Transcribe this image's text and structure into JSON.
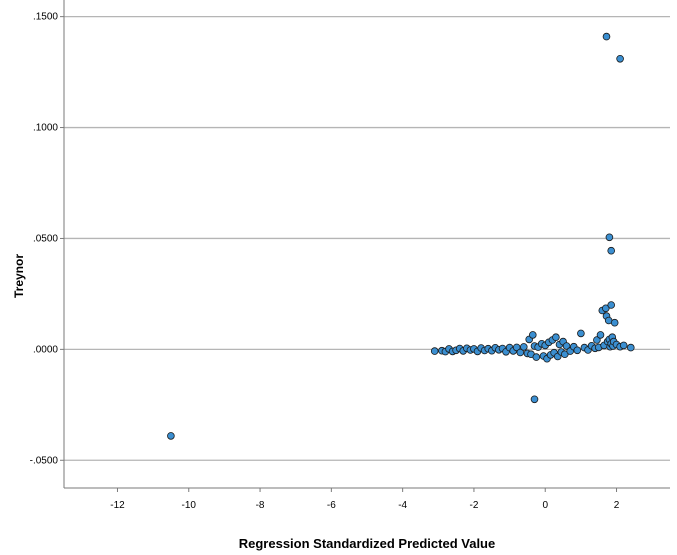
{
  "chart_data": {
    "type": "scatter",
    "title": "",
    "xlabel": "Regression Standardized Predicted Value",
    "ylabel": "Treynor",
    "xlim": [
      -13.5,
      3.5
    ],
    "ylim": [
      -0.0625,
      0.1575
    ],
    "x_ticks": [
      -12,
      -10,
      -8,
      -6,
      -4,
      -2,
      0,
      2
    ],
    "x_tick_labels": [
      "-12",
      "-10",
      "-8",
      "-6",
      "-4",
      "-2",
      "0",
      "2"
    ],
    "y_ticks": [
      -0.05,
      0,
      0.05,
      0.1,
      0.15
    ],
    "y_tick_labels": [
      "-.0500",
      ".0000",
      ".0500",
      ".1000",
      ".1500"
    ],
    "grid": "horizontal",
    "marker_fill": "#3b8fd1",
    "marker_edge": "#1a1a1a",
    "series": [
      {
        "points": [
          [
            -10.5,
            -0.039
          ],
          [
            -3.1,
            -0.0008
          ],
          [
            -2.9,
            -0.0006
          ],
          [
            -2.8,
            -0.001
          ],
          [
            -2.7,
            0.0002
          ],
          [
            -2.6,
            -0.0009
          ],
          [
            -2.5,
            -0.0004
          ],
          [
            -2.4,
            0.0004
          ],
          [
            -2.3,
            -0.0007
          ],
          [
            -2.2,
            0.0005
          ],
          [
            -2.1,
            -0.0003
          ],
          [
            -2.0,
            0.0002
          ],
          [
            -1.9,
            -0.0009
          ],
          [
            -1.8,
            0.0006
          ],
          [
            -1.7,
            -0.0005
          ],
          [
            -1.6,
            0.0003
          ],
          [
            -1.5,
            -0.0006
          ],
          [
            -1.4,
            0.0007
          ],
          [
            -1.3,
            -0.0002
          ],
          [
            -1.2,
            0.0004
          ],
          [
            -1.1,
            -0.0011
          ],
          [
            -1.0,
            0.0008
          ],
          [
            -0.9,
            -0.0007
          ],
          [
            -0.8,
            0.0009
          ],
          [
            -0.7,
            -0.0014
          ],
          [
            -0.6,
            0.0011
          ],
          [
            -0.5,
            -0.0018
          ],
          [
            -0.45,
            0.0045
          ],
          [
            -0.4,
            -0.0022
          ],
          [
            -0.35,
            0.0065
          ],
          [
            -0.3,
            0.0015
          ],
          [
            -0.25,
            -0.0035
          ],
          [
            -0.2,
            0.001
          ],
          [
            -0.3,
            -0.0225
          ],
          [
            -0.1,
            0.0025
          ],
          [
            -0.05,
            -0.003
          ],
          [
            0.0,
            0.0018
          ],
          [
            0.05,
            -0.0042
          ],
          [
            0.1,
            0.0032
          ],
          [
            0.15,
            -0.0025
          ],
          [
            0.2,
            0.0042
          ],
          [
            0.25,
            -0.0015
          ],
          [
            0.3,
            0.0055
          ],
          [
            0.35,
            -0.0032
          ],
          [
            0.4,
            0.0022
          ],
          [
            0.45,
            -0.0012
          ],
          [
            0.5,
            0.0035
          ],
          [
            0.55,
            -0.0022
          ],
          [
            0.6,
            0.0015
          ],
          [
            0.7,
            -0.0008
          ],
          [
            0.8,
            0.0012
          ],
          [
            0.9,
            -0.0004
          ],
          [
            1.0,
            0.0072
          ],
          [
            1.1,
            0.0008
          ],
          [
            1.2,
            -0.0003
          ],
          [
            1.3,
            0.0016
          ],
          [
            1.4,
            0.0005
          ],
          [
            1.45,
            0.0042
          ],
          [
            1.5,
            0.0009
          ],
          [
            1.55,
            0.0065
          ],
          [
            1.6,
            0.0175
          ],
          [
            1.65,
            0.0018
          ],
          [
            1.7,
            0.0185
          ],
          [
            1.72,
            0.015
          ],
          [
            1.75,
            0.0035
          ],
          [
            1.78,
            0.013
          ],
          [
            1.8,
            0.0045
          ],
          [
            1.82,
            0.0012
          ],
          [
            1.85,
            0.0025
          ],
          [
            1.88,
            0.0055
          ],
          [
            1.9,
            0.0015
          ],
          [
            1.92,
            0.0035
          ],
          [
            1.85,
            0.02
          ],
          [
            1.95,
            0.012
          ],
          [
            2.0,
            0.0022
          ],
          [
            2.1,
            0.0012
          ],
          [
            2.2,
            0.0018
          ],
          [
            2.4,
            0.0008
          ],
          [
            1.8,
            0.0505
          ],
          [
            1.85,
            0.0445
          ],
          [
            1.72,
            0.141
          ],
          [
            2.1,
            0.131
          ]
        ]
      }
    ]
  }
}
